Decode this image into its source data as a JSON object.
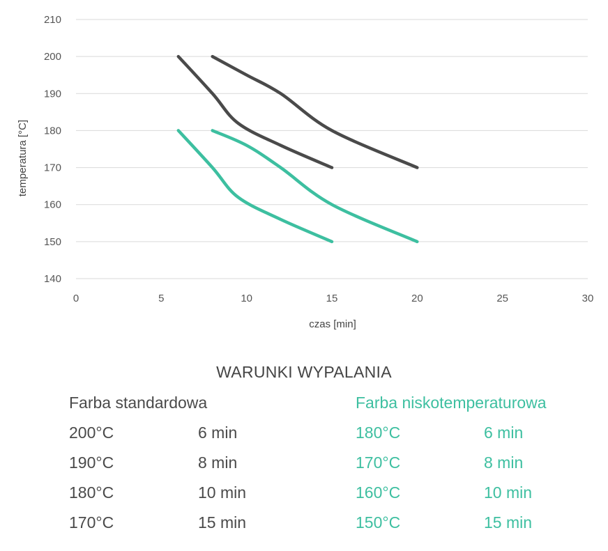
{
  "chart_data": {
    "type": "line",
    "xlabel": "czas [min]",
    "ylabel": "temperatura [°C]",
    "xlim": [
      0,
      30
    ],
    "ylim": [
      140,
      210
    ],
    "xticks": [
      0,
      5,
      10,
      15,
      20,
      25,
      30
    ],
    "yticks": [
      140,
      150,
      160,
      170,
      180,
      190,
      200,
      210
    ],
    "grid": "horizontal",
    "legend": "none",
    "series": [
      {
        "color": "#4a4a4a",
        "points": [
          [
            6,
            200
          ],
          [
            8,
            190
          ],
          [
            9.5,
            182
          ],
          [
            12,
            176
          ],
          [
            15,
            170
          ]
        ]
      },
      {
        "color": "#4a4a4a",
        "points": [
          [
            8,
            200
          ],
          [
            10,
            195
          ],
          [
            12,
            190
          ],
          [
            15,
            180
          ],
          [
            20,
            170
          ]
        ]
      },
      {
        "color": "#3dbfa0",
        "points": [
          [
            6,
            180
          ],
          [
            8,
            170
          ],
          [
            9.5,
            162
          ],
          [
            12,
            156
          ],
          [
            15,
            150
          ]
        ]
      },
      {
        "color": "#3dbfa0",
        "points": [
          [
            8,
            180
          ],
          [
            10,
            176
          ],
          [
            12,
            170
          ],
          [
            15,
            160
          ],
          [
            20,
            150
          ]
        ]
      }
    ]
  },
  "conditions": {
    "title": "WARUNKI WYPALANIA",
    "standard": {
      "heading": "Farba standardowa",
      "rows": [
        {
          "temp": "200°C",
          "time": "6 min"
        },
        {
          "temp": "190°C",
          "time": "8 min"
        },
        {
          "temp": "180°C",
          "time": "10 min"
        },
        {
          "temp": "170°C",
          "time": "15 min"
        }
      ]
    },
    "lowtemp": {
      "heading": "Farba niskotemperaturowa",
      "rows": [
        {
          "temp": "180°C",
          "time": "6 min"
        },
        {
          "temp": "170°C",
          "time": "8 min"
        },
        {
          "temp": "160°C",
          "time": "10 min"
        },
        {
          "temp": "150°C",
          "time": "15 min"
        }
      ]
    }
  }
}
